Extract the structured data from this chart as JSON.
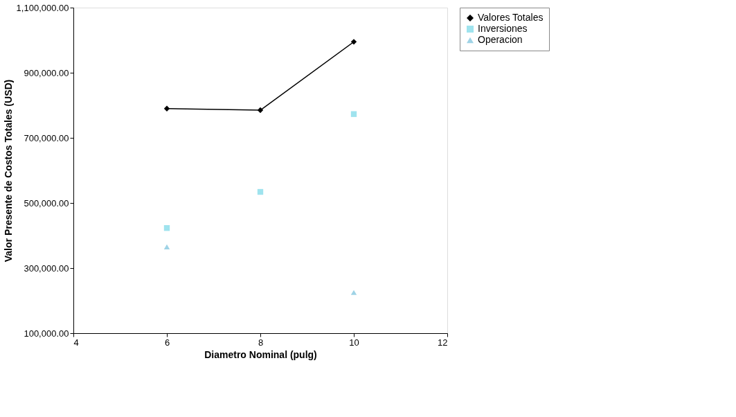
{
  "chart_data": {
    "type": "line",
    "xlabel": "Diametro Nominal (pulg)",
    "ylabel": "Valor Presente de Costos Totales (USD)",
    "x": [
      6,
      8,
      10
    ],
    "series": [
      {
        "name": "Valores Totales",
        "color": "#000000",
        "values": [
          790000,
          785000,
          995000
        ],
        "marker": "diamond"
      },
      {
        "name": "Inversiones",
        "color": "#9fe3ee",
        "type": "scatter",
        "values": [
          423000,
          534000,
          773000
        ],
        "marker": "square"
      },
      {
        "name": "Operacion",
        "color": "#9fd3e6",
        "type": "scatter",
        "values": [
          365000,
          null,
          225000
        ],
        "marker": "triangle"
      }
    ],
    "xlim": [
      4,
      12
    ],
    "xticks": [
      4,
      6,
      8,
      10,
      12
    ],
    "ylim": [
      100000,
      1100000
    ],
    "yticks": [
      {
        "value": 100000,
        "label": "100,000.00"
      },
      {
        "value": 300000,
        "label": "300,000.00"
      },
      {
        "value": 500000,
        "label": "500,000.00"
      },
      {
        "value": 700000,
        "label": "700,000.00"
      },
      {
        "value": 900000,
        "label": "900,000.00"
      },
      {
        "value": 1100000,
        "label": "1,100,000.00"
      }
    ],
    "grid": false,
    "legend": "right"
  }
}
